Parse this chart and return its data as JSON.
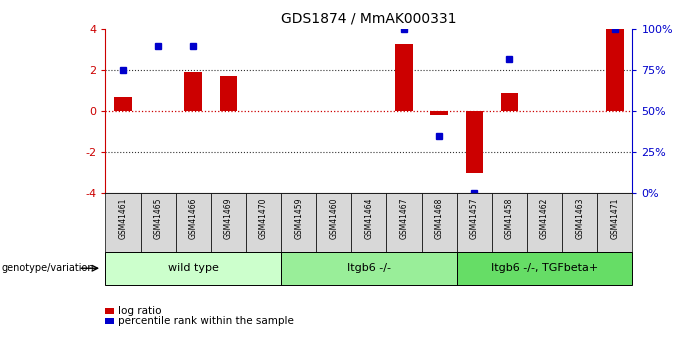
{
  "title": "GDS1874 / MmAK000331",
  "samples": [
    "GSM41461",
    "GSM41465",
    "GSM41466",
    "GSM41469",
    "GSM41470",
    "GSM41459",
    "GSM41460",
    "GSM41464",
    "GSM41467",
    "GSM41468",
    "GSM41457",
    "GSM41458",
    "GSM41462",
    "GSM41463",
    "GSM41471"
  ],
  "log_ratios": [
    0.7,
    0.0,
    1.9,
    1.7,
    0.0,
    0.0,
    0.0,
    0.0,
    3.3,
    -0.2,
    -3.0,
    0.9,
    0.0,
    0.0,
    4.0
  ],
  "percentile_ranks": [
    75,
    90,
    90,
    null,
    null,
    null,
    null,
    null,
    100,
    35,
    0,
    82,
    null,
    null,
    100
  ],
  "groups": [
    {
      "label": "wild type",
      "start": 0,
      "end": 4,
      "color": "#ccffcc"
    },
    {
      "label": "Itgb6 -/-",
      "start": 5,
      "end": 9,
      "color": "#99ee99"
    },
    {
      "label": "Itgb6 -/-, TGFbeta+",
      "start": 10,
      "end": 14,
      "color": "#66dd66"
    }
  ],
  "bar_color": "#cc0000",
  "dot_color": "#0000cc",
  "zero_line_color": "#cc0000",
  "dotted_line_color": "#333333",
  "ylim": [
    -4,
    4
  ],
  "y2lim": [
    0,
    100
  ],
  "y2ticks": [
    0,
    25,
    50,
    75,
    100
  ],
  "y2ticklabels": [
    "0%",
    "25%",
    "50%",
    "75%",
    "100%"
  ],
  "yticks": [
    -4,
    -2,
    0,
    2,
    4
  ],
  "background_color": "#ffffff",
  "legend_log_ratio": "log ratio",
  "legend_pct": "percentile rank within the sample",
  "genotype_label": "genotype/variation"
}
